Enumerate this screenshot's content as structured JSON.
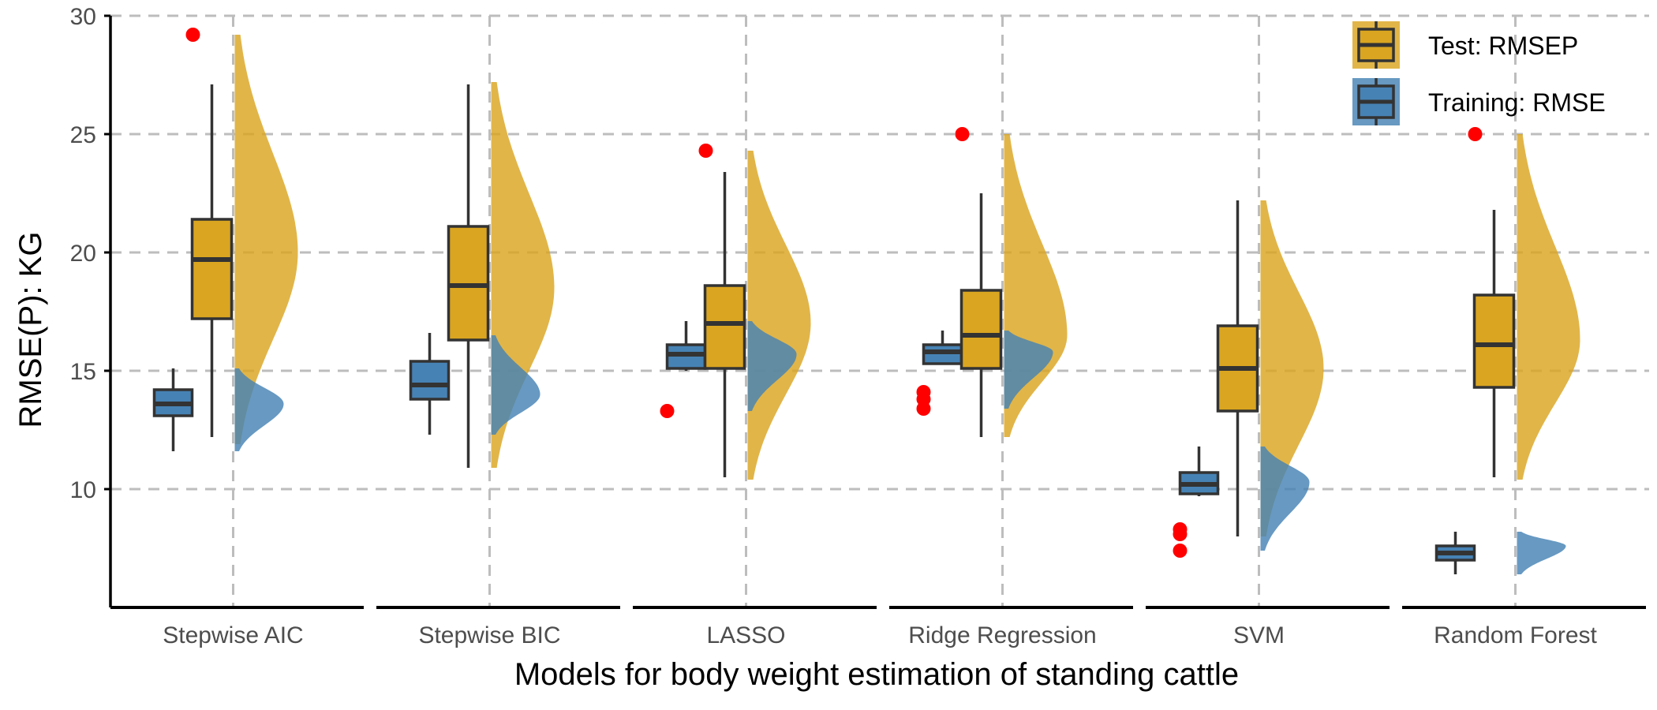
{
  "chart_data": {
    "type": "box-violin (raincloud)",
    "xlabel": "Models for body weight estimation of standing cattle",
    "ylabel": "RMSE(P): KG",
    "ylim": [
      5,
      30
    ],
    "yticks": [
      10,
      15,
      20,
      25,
      30
    ],
    "grid": true,
    "legend_position": "top-right",
    "categories": [
      "Stepwise AIC",
      "Stepwise BIC",
      "LASSO",
      "Ridge Regression",
      "SVM",
      "Random Forest"
    ],
    "series": [
      {
        "name": "Test: RMSEP",
        "color": "#DAA520",
        "boxes": [
          {
            "min": 12.2,
            "q1": 17.2,
            "median": 19.7,
            "q3": 21.4,
            "max": 27.1,
            "outliers": [
              29.2
            ],
            "range": [
              11.9,
              29.2
            ],
            "mode": 20.0
          },
          {
            "min": 10.9,
            "q1": 16.3,
            "median": 18.6,
            "q3": 21.1,
            "max": 27.1,
            "outliers": [],
            "range": [
              10.9,
              27.2
            ],
            "mode": 18.5
          },
          {
            "min": 10.5,
            "q1": 15.1,
            "median": 17.0,
            "q3": 18.6,
            "max": 23.4,
            "outliers": [
              24.3
            ],
            "range": [
              10.4,
              24.3
            ],
            "mode": 17.0
          },
          {
            "min": 12.2,
            "q1": 15.1,
            "median": 16.5,
            "q3": 18.4,
            "max": 22.5,
            "outliers": [
              25.0
            ],
            "range": [
              12.2,
              25.0
            ],
            "mode": 16.5
          },
          {
            "min": 8.0,
            "q1": 13.3,
            "median": 15.1,
            "q3": 16.9,
            "max": 22.2,
            "outliers": [],
            "range": [
              8.0,
              22.2
            ],
            "mode": 15.1
          },
          {
            "min": 10.5,
            "q1": 14.3,
            "median": 16.1,
            "q3": 18.2,
            "max": 21.8,
            "outliers": [
              25.0
            ],
            "range": [
              10.4,
              25.0
            ],
            "mode": 16.3
          }
        ]
      },
      {
        "name": "Training: RMSE",
        "color": "#4682B4",
        "boxes": [
          {
            "min": 11.6,
            "q1": 13.1,
            "median": 13.6,
            "q3": 14.2,
            "max": 15.1,
            "outliers": [],
            "range": [
              11.6,
              15.1
            ],
            "mode": 13.6
          },
          {
            "min": 12.3,
            "q1": 13.8,
            "median": 14.4,
            "q3": 15.4,
            "max": 16.6,
            "outliers": [],
            "range": [
              12.3,
              16.5
            ],
            "mode": 14.0
          },
          {
            "min": 15.0,
            "q1": 15.1,
            "median": 15.7,
            "q3": 16.1,
            "max": 17.1,
            "outliers": [
              13.3
            ],
            "range": [
              13.3,
              17.1
            ],
            "mode": 15.7
          },
          {
            "min": 15.3,
            "q1": 15.3,
            "median": 15.8,
            "q3": 16.1,
            "max": 16.7,
            "outliers": [
              14.1,
              13.8,
              13.4
            ],
            "range": [
              13.4,
              16.7
            ],
            "mode": 15.8
          },
          {
            "min": 9.7,
            "q1": 9.8,
            "median": 10.2,
            "q3": 10.7,
            "max": 11.8,
            "outliers": [
              8.3,
              8.1,
              7.4
            ],
            "range": [
              7.4,
              11.8
            ],
            "mode": 10.3
          },
          {
            "min": 6.4,
            "q1": 7.0,
            "median": 7.3,
            "q3": 7.6,
            "max": 8.2,
            "outliers": [],
            "range": [
              6.4,
              8.2
            ],
            "mode": 7.6
          }
        ]
      }
    ],
    "outlier_color": "#FF0000"
  }
}
